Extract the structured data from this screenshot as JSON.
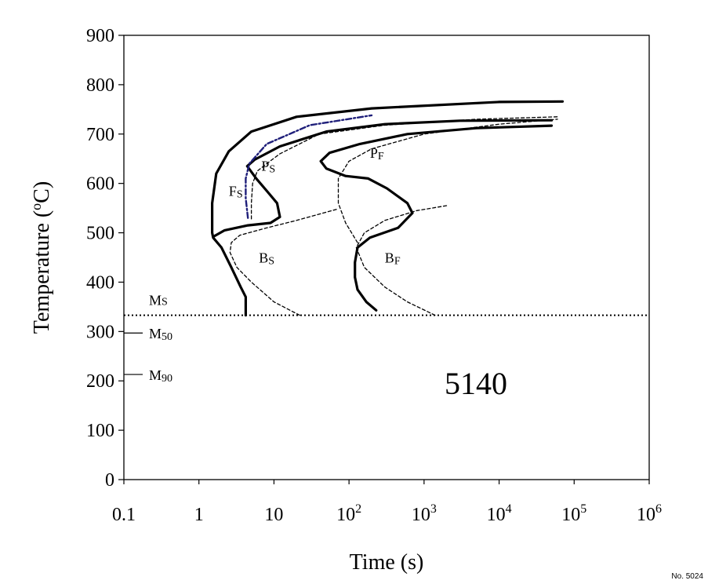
{
  "chart_data": {
    "type": "line",
    "title": "",
    "xlabel": "Time (s)",
    "ylabel_base": "Temperature (",
    "ylabel_deg": "o",
    "ylabel_unit": "C)",
    "xscale": "log",
    "xlim": [
      0.1,
      1000000
    ],
    "ylim": [
      0,
      900
    ],
    "grid": false,
    "x_ticks": [
      {
        "value": 0.1,
        "label": "0.1"
      },
      {
        "value": 1,
        "label": "1"
      },
      {
        "value": 10,
        "label": "10"
      },
      {
        "value": 100,
        "base": "10",
        "exp": "2"
      },
      {
        "value": 1000,
        "base": "10",
        "exp": "3"
      },
      {
        "value": 10000,
        "base": "10",
        "exp": "4"
      },
      {
        "value": 100000,
        "base": "10",
        "exp": "5"
      },
      {
        "value": 1000000,
        "base": "10",
        "exp": "6"
      }
    ],
    "y_ticks": [
      0,
      100,
      200,
      300,
      400,
      500,
      600,
      700,
      800,
      900
    ],
    "steel_label": "5140",
    "corner_note": "No. 5024",
    "martensite": [
      {
        "base": "M",
        "sub": "S",
        "temp": 333
      },
      {
        "base": "M",
        "sub": "50",
        "temp": 297
      },
      {
        "base": "M",
        "sub": "90",
        "temp": 213
      }
    ],
    "curve_labels": [
      {
        "base": "F",
        "sub": "S",
        "x": 2.5,
        "y": 575
      },
      {
        "base": "P",
        "sub": "S",
        "x": 6.8,
        "y": 626
      },
      {
        "base": "B",
        "sub": "S",
        "x": 6.3,
        "y": 440
      },
      {
        "base": "P",
        "sub": "F",
        "x": 190,
        "y": 652
      },
      {
        "base": "B",
        "sub": "F",
        "x": 300,
        "y": 440
      }
    ],
    "series": [
      {
        "style": "solid",
        "points": [
          [
            4.2,
            333
          ],
          [
            4.2,
            370
          ],
          [
            3.6,
            390
          ],
          [
            2.7,
            430
          ],
          [
            2.0,
            470
          ],
          [
            1.55,
            490
          ],
          [
            1.5,
            500
          ],
          [
            1.5,
            560
          ],
          [
            1.7,
            620
          ],
          [
            2.5,
            665
          ],
          [
            5,
            705
          ],
          [
            20,
            735
          ],
          [
            200,
            752
          ],
          [
            10000,
            765
          ],
          [
            70000,
            766
          ]
        ]
      },
      {
        "style": "solid",
        "points": [
          [
            1.55,
            492
          ],
          [
            2.2,
            505
          ],
          [
            4.5,
            515
          ],
          [
            9,
            520
          ],
          [
            12,
            532
          ],
          [
            11,
            560
          ],
          [
            8,
            585
          ],
          [
            5.8,
            610
          ],
          [
            4.4,
            635
          ],
          [
            5.5,
            648
          ],
          [
            12,
            675
          ],
          [
            50,
            705
          ],
          [
            300,
            720
          ],
          [
            3000,
            727
          ],
          [
            50000,
            728
          ]
        ]
      },
      {
        "style": "solid",
        "points": [
          [
            230,
            343
          ],
          [
            170,
            360
          ],
          [
            130,
            385
          ],
          [
            120,
            410
          ],
          [
            120,
            440
          ],
          [
            130,
            470
          ],
          [
            190,
            490
          ],
          [
            450,
            510
          ],
          [
            700,
            540
          ],
          [
            600,
            560
          ],
          [
            320,
            590
          ],
          [
            180,
            610
          ],
          [
            90,
            615
          ],
          [
            50,
            630
          ],
          [
            42,
            645
          ],
          [
            55,
            662
          ],
          [
            140,
            680
          ],
          [
            600,
            700
          ],
          [
            5000,
            712
          ],
          [
            50000,
            717
          ]
        ]
      },
      {
        "style": "dashed",
        "points": [
          [
            22,
            333
          ],
          [
            10,
            360
          ],
          [
            5,
            400
          ],
          [
            3.2,
            430
          ],
          [
            2.6,
            460
          ],
          [
            2.7,
            480
          ],
          [
            3.5,
            495
          ],
          [
            8,
            510
          ],
          [
            20,
            525
          ],
          [
            70,
            548
          ]
        ]
      },
      {
        "style": "dashed",
        "points": [
          [
            1400,
            333
          ],
          [
            600,
            360
          ],
          [
            300,
            390
          ],
          [
            160,
            430
          ],
          [
            125,
            470
          ],
          [
            160,
            500
          ],
          [
            300,
            525
          ],
          [
            800,
            545
          ],
          [
            2000,
            555
          ]
        ]
      },
      {
        "style": "dashed",
        "points": [
          [
            5,
            528
          ],
          [
            5,
            560
          ],
          [
            5.2,
            600
          ],
          [
            6,
            625
          ],
          [
            8,
            640
          ],
          [
            12,
            660
          ],
          [
            40,
            700
          ],
          [
            300,
            718
          ],
          [
            5000,
            730
          ],
          [
            60000,
            735
          ]
        ]
      },
      {
        "style": "dashed",
        "points": [
          [
            130,
            480
          ],
          [
            90,
            520
          ],
          [
            72,
            560
          ],
          [
            72,
            610
          ],
          [
            100,
            645
          ],
          [
            200,
            670
          ],
          [
            1000,
            700
          ],
          [
            10000,
            720
          ],
          [
            60000,
            730
          ]
        ]
      },
      {
        "style": "dashdot",
        "color": "#1f1f7a",
        "points": [
          [
            4.5,
            530
          ],
          [
            4.2,
            570
          ],
          [
            4.2,
            610
          ],
          [
            4.7,
            640
          ],
          [
            8,
            680
          ],
          [
            30,
            718
          ],
          [
            200,
            738
          ]
        ]
      }
    ]
  }
}
